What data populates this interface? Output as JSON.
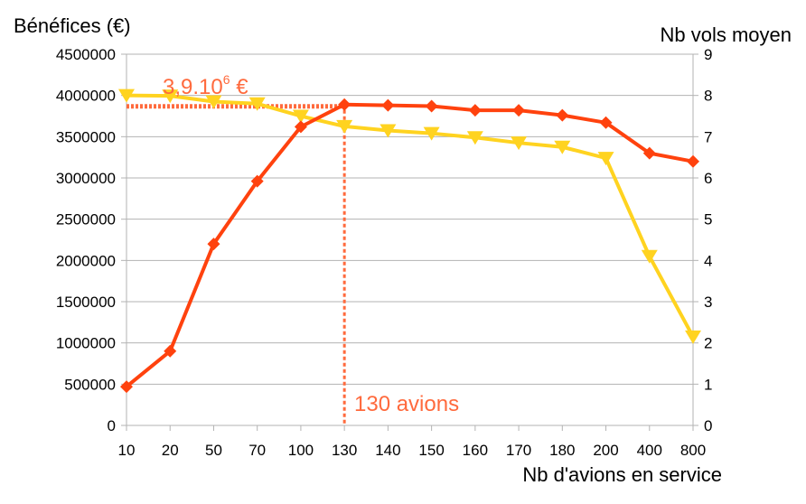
{
  "chart_data": {
    "type": "line",
    "title": "",
    "xlabel": "Nb d'avions en service",
    "ylabel_left": "Bénéfices (€)",
    "ylabel_right": "Nb vols moyen",
    "categories": [
      "10",
      "20",
      "50",
      "70",
      "100",
      "130",
      "140",
      "150",
      "160",
      "170",
      "180",
      "200",
      "400",
      "800"
    ],
    "y_left_ticks": [
      "0",
      "500000",
      "1000000",
      "1500000",
      "2000000",
      "2500000",
      "3000000",
      "3500000",
      "4000000",
      "4500000"
    ],
    "y_right_ticks": [
      "0",
      "1",
      "2",
      "3",
      "4",
      "5",
      "6",
      "7",
      "8",
      "9"
    ],
    "ylim_left": [
      0,
      4500000
    ],
    "ylim_right": [
      0,
      9
    ],
    "grid": true,
    "series": [
      {
        "axis": "left",
        "color": "#ff420e",
        "marker": "diamond",
        "values": [
          470000,
          900000,
          2200000,
          2960000,
          3620000,
          3890000,
          3880000,
          3870000,
          3820000,
          3820000,
          3760000,
          3670000,
          3300000,
          3200000
        ]
      },
      {
        "axis": "right",
        "color": "#ffd320",
        "marker": "triangle-down",
        "values": [
          8.0,
          7.99,
          7.85,
          7.8,
          7.5,
          7.25,
          7.15,
          7.08,
          6.98,
          6.85,
          6.75,
          6.48,
          4.1,
          2.15
        ]
      }
    ],
    "annotations": {
      "value_label_base": "3,9.10",
      "value_label_exp": "6",
      "value_label_unit": " €",
      "value_line_y": 3900000,
      "category_label": "130 avions",
      "category_line_index": 5,
      "color": "#ff6a3d"
    }
  }
}
